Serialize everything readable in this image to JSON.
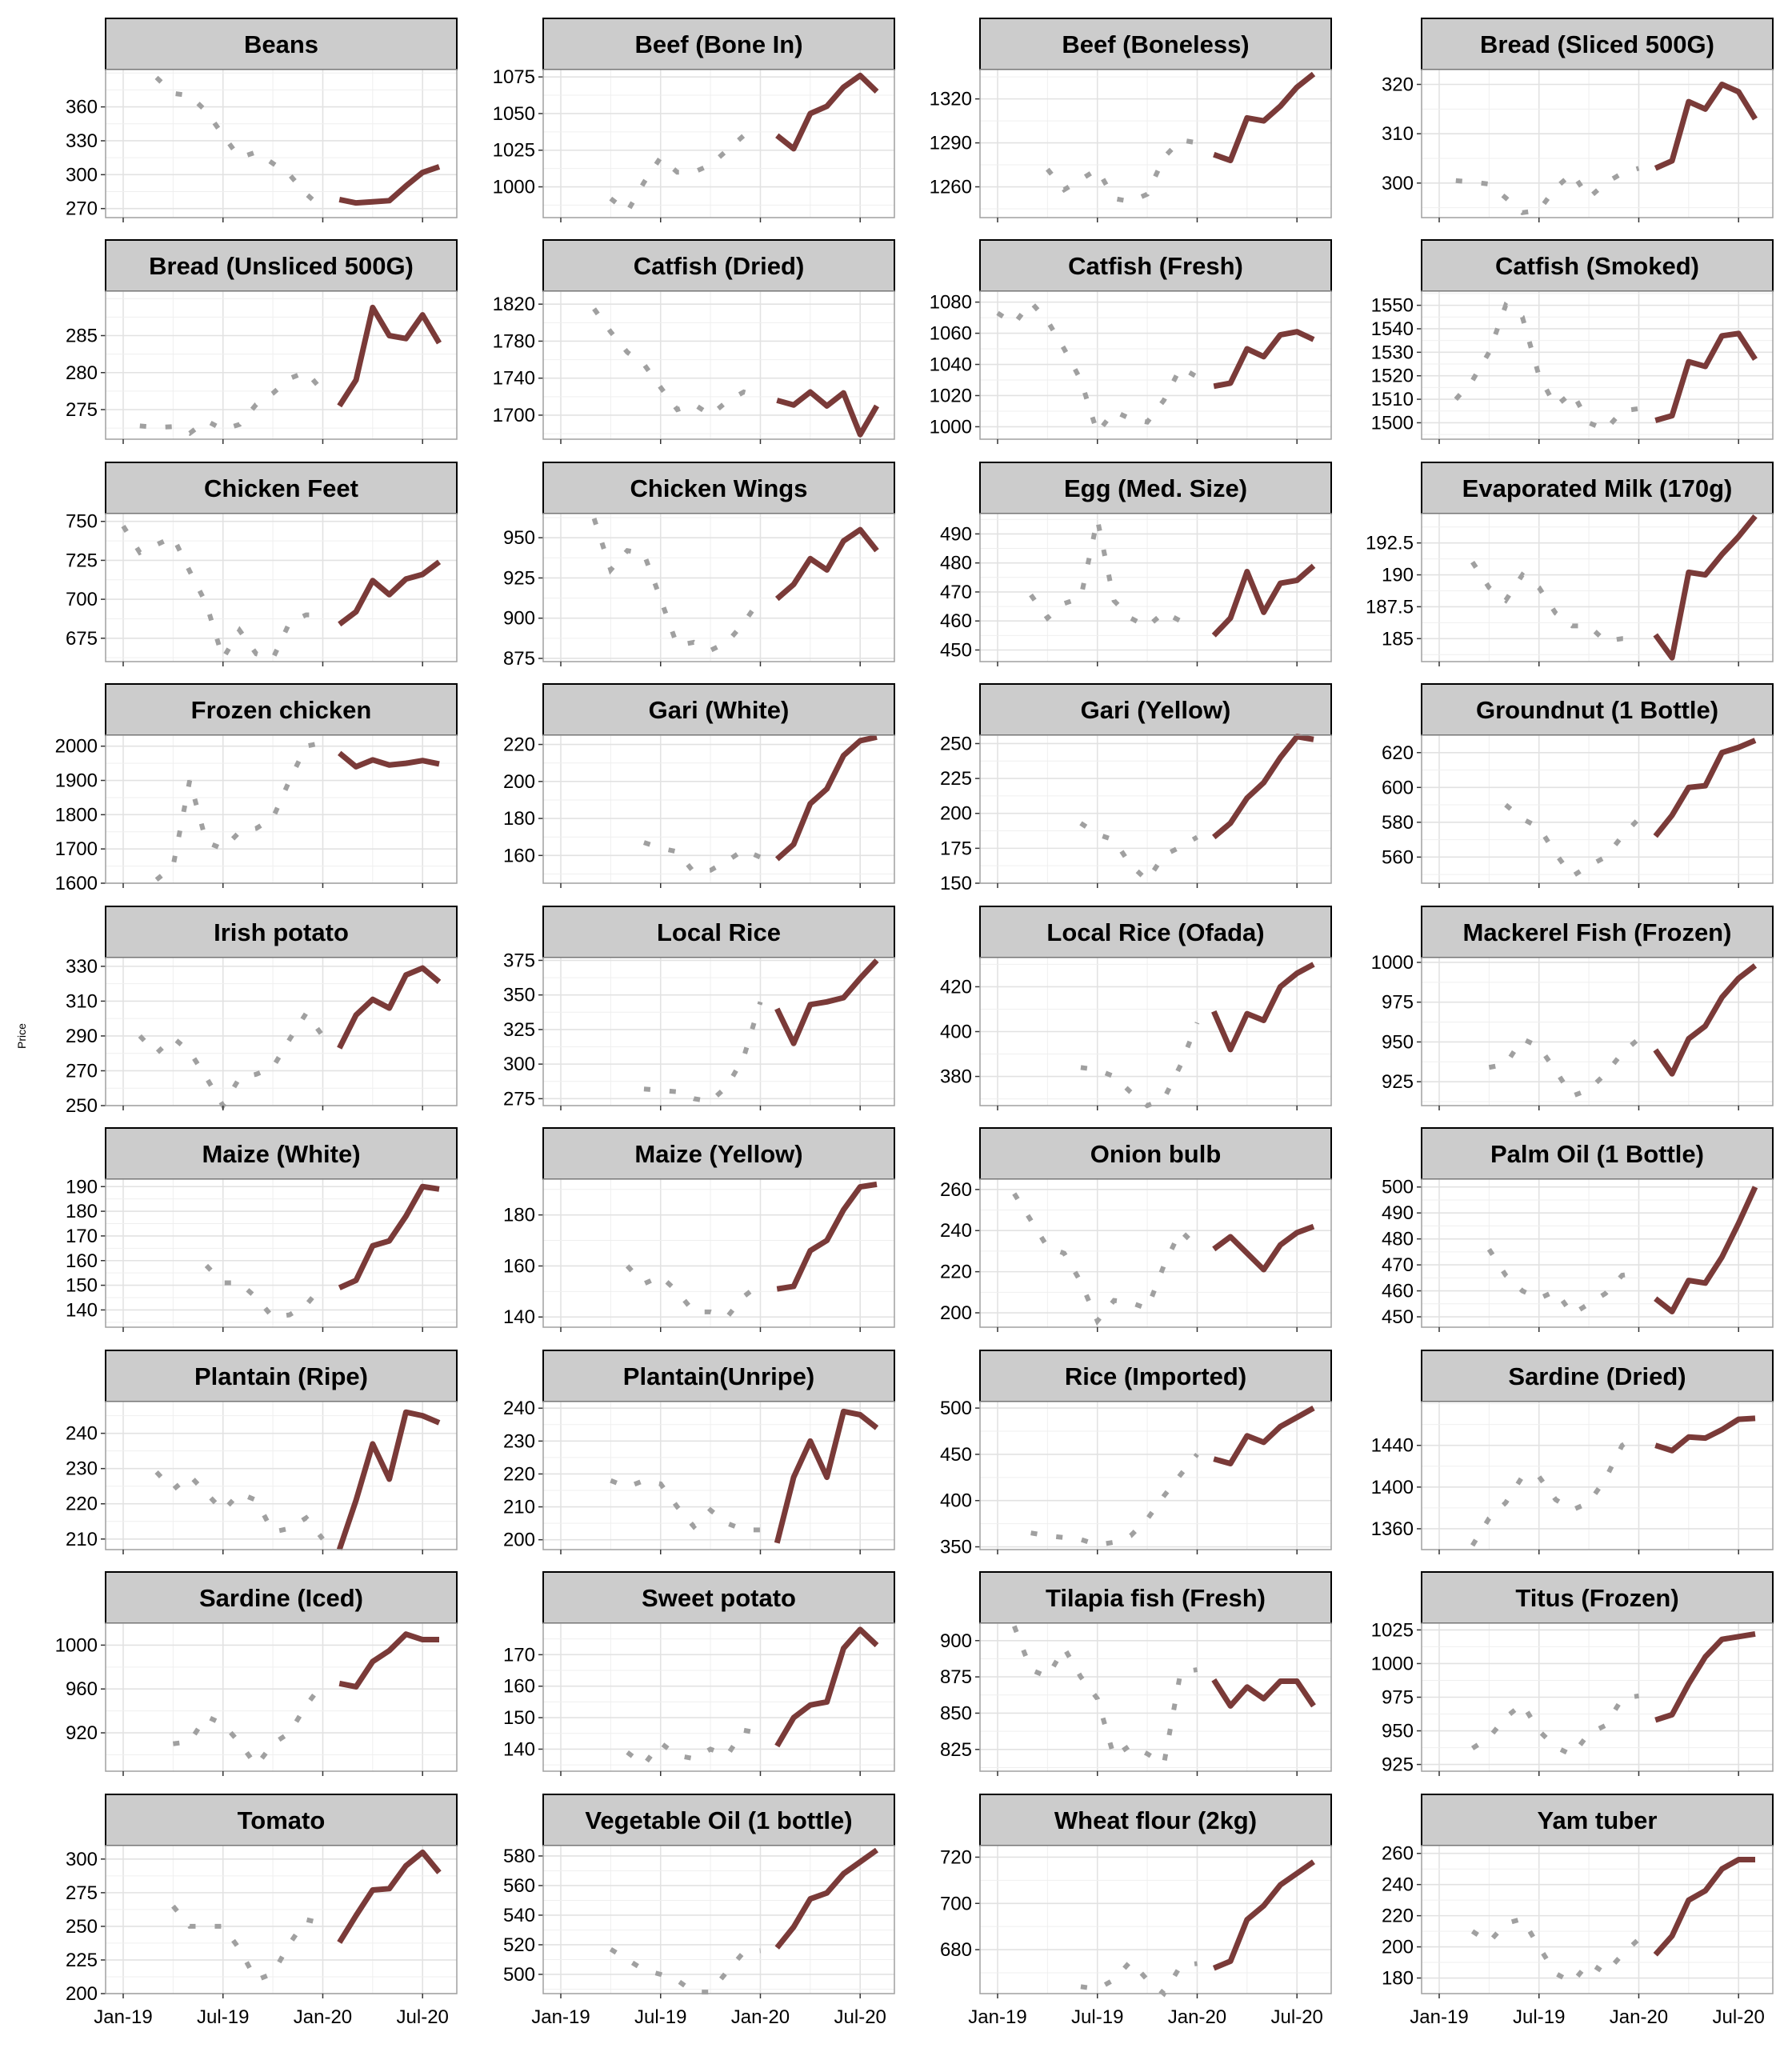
{
  "ylabel": "Price",
  "x_tick_labels": [
    "Jan-19",
    "Jul-19",
    "Jan-20",
    "Jul-20"
  ],
  "colors": {
    "history": "#a0a0a0",
    "recent": "#7a3a38",
    "strip_fill": "#cccccc",
    "grid": "#e6e6e6",
    "panel_border": "#a0a0a0"
  },
  "chart_data": {
    "type": "line",
    "layout": "facet_wrap",
    "ncol": 4,
    "xlabel": "",
    "ylabel": "Price",
    "x": [
      "Jan-19",
      "Feb-19",
      "Mar-19",
      "Apr-19",
      "May-19",
      "Jun-19",
      "Jul-19",
      "Aug-19",
      "Sep-19",
      "Oct-19",
      "Nov-19",
      "Dec-19",
      "Jan-20",
      "Feb-20",
      "Mar-20",
      "Apr-20",
      "May-20",
      "Jun-20",
      "Jul-20",
      "Aug-20"
    ],
    "series_styles": {
      "history": "dotted grey (Jan-19 to Jan-20)",
      "recent": "solid dark red (Feb-20 to Aug-20)"
    },
    "panels": [
      {
        "title": "Beans",
        "yticks": [
          270,
          300,
          330,
          360
        ],
        "ylim": [
          262,
          393
        ],
        "values": [
          386,
          372,
          370,
          356,
          335,
          315,
          320,
          310,
          300,
          283,
          270,
          278,
          275,
          276,
          277,
          290,
          302,
          307
        ]
      },
      {
        "title": "Beef (Bone In)",
        "yticks": [
          1000,
          1025,
          1050,
          1075
        ],
        "ylim": [
          979,
          1080
        ],
        "values": [
          992,
          983,
          1003,
          1020,
          1010,
          1010,
          1015,
          1025,
          1035,
          1040,
          1035,
          1026,
          1050,
          1055,
          1068,
          1076,
          1065
        ]
      },
      {
        "title": "Beef (Boneless)",
        "yticks": [
          1260,
          1290,
          1320
        ],
        "ylim": [
          1239,
          1340
        ],
        "values": [
          1272,
          1258,
          1265,
          1272,
          1252,
          1250,
          1255,
          1280,
          1292,
          1290,
          1282,
          1278,
          1307,
          1305,
          1315,
          1328,
          1337
        ]
      },
      {
        "title": "Bread (Sliced 500G)",
        "yticks": [
          300,
          310,
          320
        ],
        "ylim": [
          293,
          323
        ],
        "values": [
          300.5,
          300.2,
          299.8,
          297,
          294,
          294.5,
          299,
          302,
          297,
          300,
          302,
          303,
          303,
          304.5,
          316.5,
          315,
          320,
          318.5,
          313
        ]
      },
      {
        "title": "Bread (Unsliced 500G)",
        "yticks": [
          275,
          280,
          285
        ],
        "ylim": [
          271,
          291
        ],
        "values": [
          272.8,
          272.6,
          272.7,
          271.8,
          273.5,
          272.3,
          273,
          275.7,
          277.2,
          279.2,
          280.1,
          277.5,
          275.5,
          279,
          288.8,
          285,
          284.6,
          287.8,
          284
        ]
      },
      {
        "title": "Catfish (Dried)",
        "yticks": [
          1700,
          1740,
          1780,
          1820
        ],
        "ylim": [
          1674,
          1834
        ],
        "values": [
          1815,
          1790,
          1768,
          1755,
          1730,
          1706,
          1712,
          1700,
          1715,
          1725,
          1720,
          1716,
          1711,
          1725,
          1710,
          1724,
          1679,
          1710
        ]
      },
      {
        "title": "Catfish (Fresh)",
        "yticks": [
          1000,
          1020,
          1040,
          1060,
          1080
        ],
        "ylim": [
          992,
          1087
        ],
        "values": [
          1073,
          1066,
          1080,
          1068,
          1050,
          1030,
          996,
          1010,
          1005,
          1003,
          1017,
          1038,
          1032,
          1026,
          1028,
          1050,
          1045,
          1059,
          1061,
          1056
        ]
      },
      {
        "title": "Catfish (Smoked)",
        "yticks": [
          1500,
          1510,
          1520,
          1530,
          1540,
          1550
        ],
        "ylim": [
          1493,
          1556
        ],
        "values": [
          1510,
          1518,
          1530,
          1550,
          1545,
          1520,
          1507,
          1513,
          1500,
          1497,
          1505,
          1506,
          1501,
          1503,
          1526,
          1524,
          1537,
          1538,
          1527
        ]
      },
      {
        "title": "Chicken Feet",
        "yticks": [
          675,
          700,
          725,
          750
        ],
        "ylim": [
          660,
          755
        ],
        "values": [
          747,
          730,
          735,
          740,
          718,
          697,
          662,
          680,
          665,
          662,
          685,
          690,
          690,
          684,
          692,
          712,
          703,
          713,
          716,
          724
        ]
      },
      {
        "title": "Chicken Wings",
        "yticks": [
          875,
          900,
          925,
          950
        ],
        "ylim": [
          873,
          965
        ],
        "values": [
          962,
          930,
          942,
          940,
          912,
          883,
          885,
          880,
          885,
          897,
          912,
          912,
          921,
          937,
          930,
          948,
          955,
          942
        ]
      },
      {
        "title": "Egg (Med. Size)",
        "yticks": [
          450,
          460,
          470,
          480,
          490
        ],
        "ylim": [
          446,
          497
        ],
        "values": [
          469,
          461,
          466,
          468,
          495,
          467,
          461,
          458,
          463,
          460,
          458,
          455,
          461,
          477,
          463,
          473,
          474,
          479
        ]
      },
      {
        "title": "Evaporated Milk (170g)",
        "yticks": [
          185,
          187.5,
          190,
          192.5
        ],
        "ylim": [
          183.2,
          194.8
        ],
        "values": [
          191,
          189,
          188,
          190,
          189,
          187,
          186,
          186,
          184.8,
          185,
          185,
          185.3,
          183.5,
          190.2,
          190,
          191.6,
          193,
          194.6
        ]
      },
      {
        "title": "Frozen chicken",
        "yticks": [
          1600,
          1700,
          1800,
          1900,
          2000
        ],
        "ylim": [
          1600,
          2032
        ],
        "values": [
          1610,
          1650,
          1900,
          1720,
          1700,
          1750,
          1760,
          1790,
          1900,
          2000,
          2010,
          1980,
          1940,
          1960,
          1945,
          1950,
          1958,
          1948
        ]
      },
      {
        "title": "Gari (White)",
        "yticks": [
          160,
          180,
          200,
          220
        ],
        "ylim": [
          145,
          225
        ],
        "values": [
          167,
          164,
          162,
          151,
          152,
          157,
          163,
          159,
          158,
          166,
          188,
          196,
          214,
          222,
          224
        ]
      },
      {
        "title": "Gari (Yellow)",
        "yticks": [
          150,
          175,
          200,
          225,
          250
        ],
        "ylim": [
          150,
          256
        ],
        "values": [
          193,
          185,
          181,
          163,
          152,
          170,
          176,
          183,
          183,
          193,
          211,
          222,
          240,
          255,
          253
        ]
      },
      {
        "title": "Groundnut (1 Bottle)",
        "yticks": [
          560,
          580,
          600,
          620
        ],
        "ylim": [
          545,
          630
        ],
        "values": [
          590,
          582,
          577,
          562,
          549,
          555,
          560,
          572,
          582,
          572,
          584,
          600,
          601,
          620,
          623,
          627
        ]
      },
      {
        "title": "Irish potato",
        "yticks": [
          250,
          270,
          290,
          310,
          330
        ],
        "ylim": [
          250,
          335
        ],
        "values": [
          290,
          280,
          289,
          281,
          266,
          250,
          266,
          268,
          272,
          288,
          303,
          290,
          283,
          302,
          311,
          306,
          325,
          329,
          321
        ]
      },
      {
        "title": "Local Rice",
        "yticks": [
          275,
          300,
          325,
          350,
          375
        ],
        "ylim": [
          270,
          377
        ],
        "values": [
          282,
          281,
          280,
          275,
          273,
          284,
          305,
          345,
          340,
          315,
          343,
          345,
          348,
          362,
          375
        ]
      },
      {
        "title": "Local Rice (Ofada)",
        "yticks": [
          380,
          400,
          420
        ],
        "ylim": [
          367,
          433
        ],
        "values": [
          384,
          383,
          380,
          373,
          367,
          370,
          385,
          404,
          409,
          392,
          408,
          405,
          420,
          426,
          430
        ]
      },
      {
        "title": "Mackerel Fish (Frozen)",
        "yticks": [
          925,
          950,
          975,
          1000
        ],
        "ylim": [
          910,
          1003
        ],
        "values": [
          934,
          936,
          952,
          947,
          932,
          916,
          920,
          930,
          943,
          952,
          945,
          930,
          952,
          960,
          978,
          990,
          998
        ]
      },
      {
        "title": "Maize (White)",
        "yticks": [
          140,
          150,
          160,
          170,
          180,
          190
        ],
        "ylim": [
          133,
          193
        ],
        "values": [
          158,
          151,
          151,
          145,
          137,
          138,
          142,
          150,
          149,
          152,
          166,
          168,
          178,
          190,
          189
        ]
      },
      {
        "title": "Maize (Yellow)",
        "yticks": [
          140,
          160,
          180
        ],
        "ylim": [
          136,
          194
        ],
        "values": [
          160,
          153,
          156,
          150,
          142,
          142,
          140,
          148,
          153,
          151,
          152,
          166,
          170,
          182,
          191,
          192
        ]
      },
      {
        "title": "Onion bulb",
        "yticks": [
          200,
          220,
          240,
          260
        ],
        "ylim": [
          193,
          265
        ],
        "values": [
          258,
          245,
          232,
          229,
          215,
          196,
          206,
          205,
          202,
          223,
          240,
          232,
          231,
          237,
          229,
          221,
          233,
          239,
          242
        ]
      },
      {
        "title": "Palm Oil (1 Bottle)",
        "yticks": [
          450,
          460,
          470,
          480,
          490,
          500
        ],
        "ylim": [
          446,
          503
        ],
        "values": [
          476,
          466,
          460,
          457,
          460,
          451,
          455,
          459,
          466,
          467,
          457,
          452,
          464,
          463,
          473,
          486,
          500
        ]
      },
      {
        "title": "Plantain (Ripe)",
        "yticks": [
          210,
          220,
          230,
          240
        ],
        "ylim": [
          207,
          249
        ],
        "values": [
          229,
          224,
          228,
          223,
          218,
          223,
          221,
          212,
          213,
          216,
          210,
          207,
          221,
          237,
          227,
          246,
          245,
          243
        ]
      },
      {
        "title": "Plantain(Unripe)",
        "yticks": [
          200,
          210,
          220,
          230,
          240
        ],
        "ylim": [
          197,
          242
        ],
        "values": [
          218,
          216,
          218,
          217,
          210,
          204,
          209,
          205,
          203,
          203,
          199,
          219,
          230,
          219,
          239,
          238,
          234
        ]
      },
      {
        "title": "Rice (Imported)",
        "yticks": [
          350,
          400,
          450,
          500
        ],
        "ylim": [
          347,
          507
        ],
        "values": [
          365,
          362,
          360,
          358,
          352,
          355,
          362,
          380,
          405,
          428,
          450,
          445,
          440,
          470,
          463,
          480,
          490,
          500
        ]
      },
      {
        "title": "Sardine (Dried)",
        "yticks": [
          1360,
          1400,
          1440
        ],
        "ylim": [
          1340,
          1482
        ],
        "values": [
          1344,
          1370,
          1385,
          1410,
          1410,
          1388,
          1378,
          1385,
          1408,
          1440,
          1450,
          1440,
          1435,
          1448,
          1447,
          1455,
          1465,
          1466
        ]
      },
      {
        "title": "Sardine (Iced)",
        "yticks": [
          920,
          960,
          1000
        ],
        "ylim": [
          885,
          1020
        ],
        "values": [
          910,
          912,
          935,
          928,
          911,
          890,
          910,
          920,
          945,
          965,
          965,
          962,
          985,
          995,
          1010,
          1005,
          1005
        ]
      },
      {
        "title": "Sweet potato",
        "yticks": [
          140,
          150,
          160,
          170
        ],
        "ylim": [
          133,
          180
        ],
        "values": [
          139,
          135,
          142,
          138,
          137,
          140,
          138,
          146,
          145,
          141,
          150,
          154,
          155,
          172,
          178,
          173
        ]
      },
      {
        "title": "Tilapia fish (Fresh)",
        "yticks": [
          825,
          850,
          875,
          900
        ],
        "ylim": [
          810,
          912
        ],
        "values": [
          910,
          880,
          875,
          895,
          875,
          860,
          820,
          828,
          822,
          815,
          878,
          880,
          873,
          855,
          868,
          860,
          872,
          872,
          855
        ]
      },
      {
        "title": "Titus (Frozen)",
        "yticks": [
          925,
          950,
          975,
          1000,
          1025
        ],
        "ylim": [
          920,
          1030
        ],
        "values": [
          937,
          945,
          960,
          970,
          950,
          938,
          932,
          948,
          954,
          974,
          976,
          958,
          962,
          985,
          1005,
          1018,
          1020,
          1022
        ]
      },
      {
        "title": "Tomato",
        "yticks": [
          200,
          225,
          250,
          275,
          300
        ],
        "ylim": [
          200,
          310
        ],
        "values": [
          265,
          250,
          250,
          250,
          233,
          210,
          215,
          237,
          255,
          252,
          238,
          258,
          277,
          278,
          295,
          305,
          290
        ]
      },
      {
        "title": "Vegetable Oil (1 bottle)",
        "yticks": [
          500,
          520,
          540,
          560,
          580
        ],
        "ylim": [
          487,
          587
        ],
        "values": [
          517,
          510,
          503,
          500,
          496,
          488,
          488,
          502,
          515,
          516,
          518,
          532,
          551,
          555,
          568,
          576,
          584
        ]
      },
      {
        "title": "Wheat flour (2kg)",
        "yticks": [
          680,
          700,
          720
        ],
        "ylim": [
          661,
          725
        ],
        "values": [
          664,
          663,
          667,
          675,
          667,
          661,
          673,
          674,
          672,
          675,
          693,
          699,
          708,
          713,
          718
        ]
      },
      {
        "title": "Yam tuber",
        "yticks": [
          180,
          200,
          220,
          240,
          260
        ],
        "ylim": [
          170,
          265
        ],
        "values": [
          210,
          203,
          215,
          218,
          200,
          183,
          177,
          190,
          183,
          195,
          205,
          195,
          207,
          230,
          236,
          250,
          256,
          256
        ]
      }
    ]
  }
}
